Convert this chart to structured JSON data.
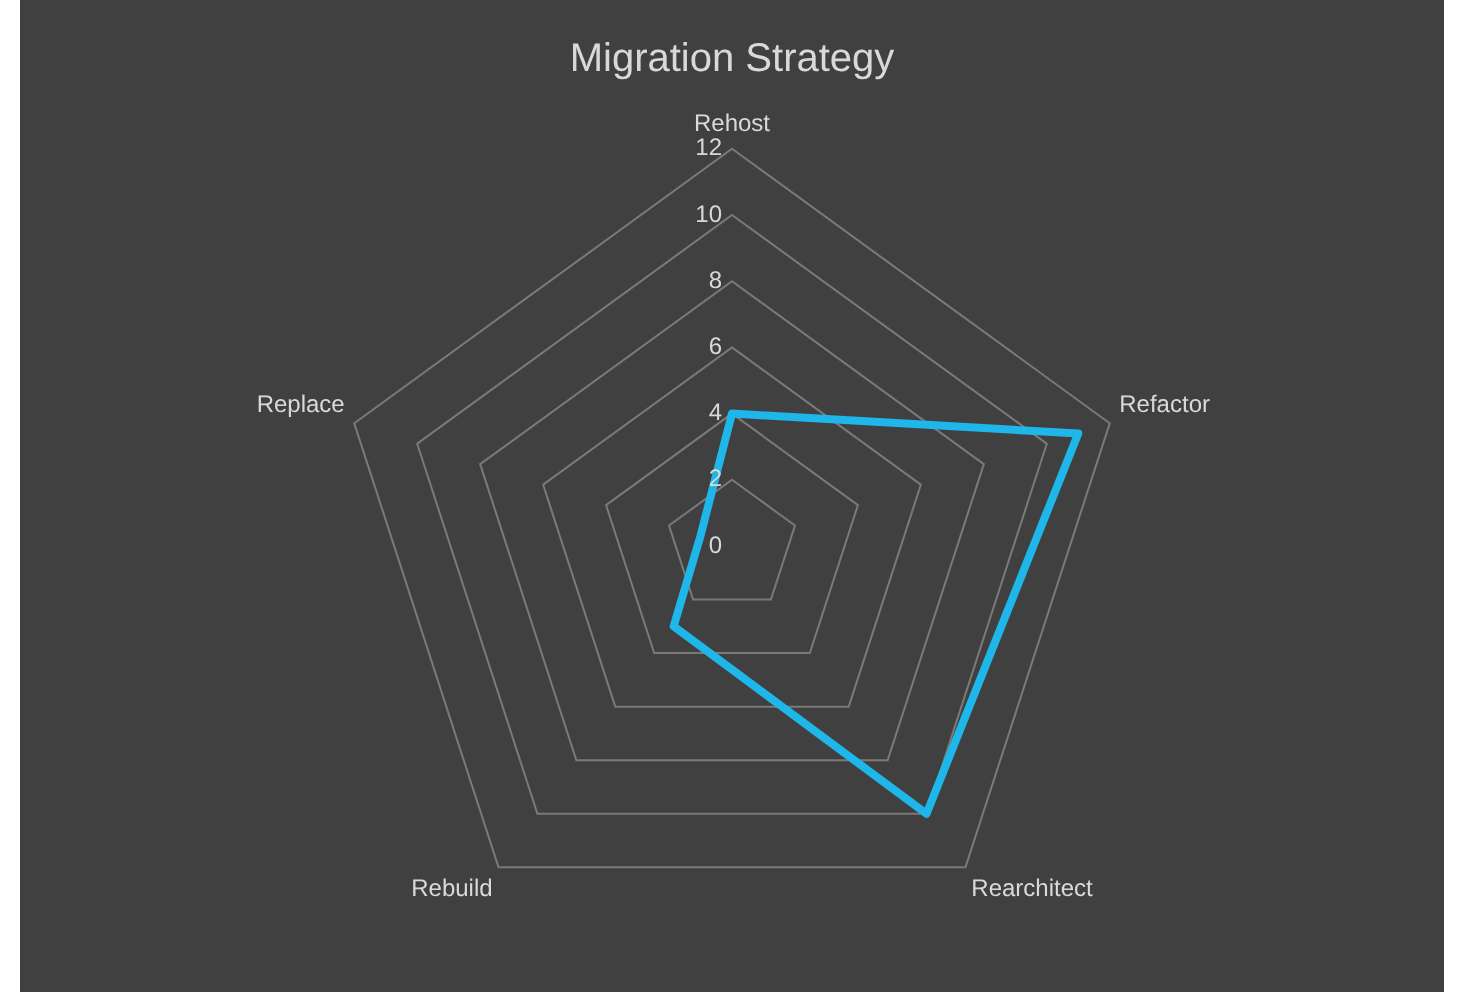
{
  "chart_data": {
    "type": "radar",
    "title": "Migration Strategy",
    "categories": [
      "Rehost",
      "Refactor",
      "Rearchitect",
      "Rebuild",
      "Replace"
    ],
    "series": [
      {
        "color": "#1fb6ea",
        "values": [
          4,
          11,
          10,
          3,
          1
        ]
      }
    ],
    "ylim": [
      0,
      12
    ],
    "yticks": [
      0,
      2,
      4,
      6,
      8,
      10,
      12
    ],
    "grid": true,
    "legend": false,
    "marker": "none",
    "line_style": "solid"
  }
}
